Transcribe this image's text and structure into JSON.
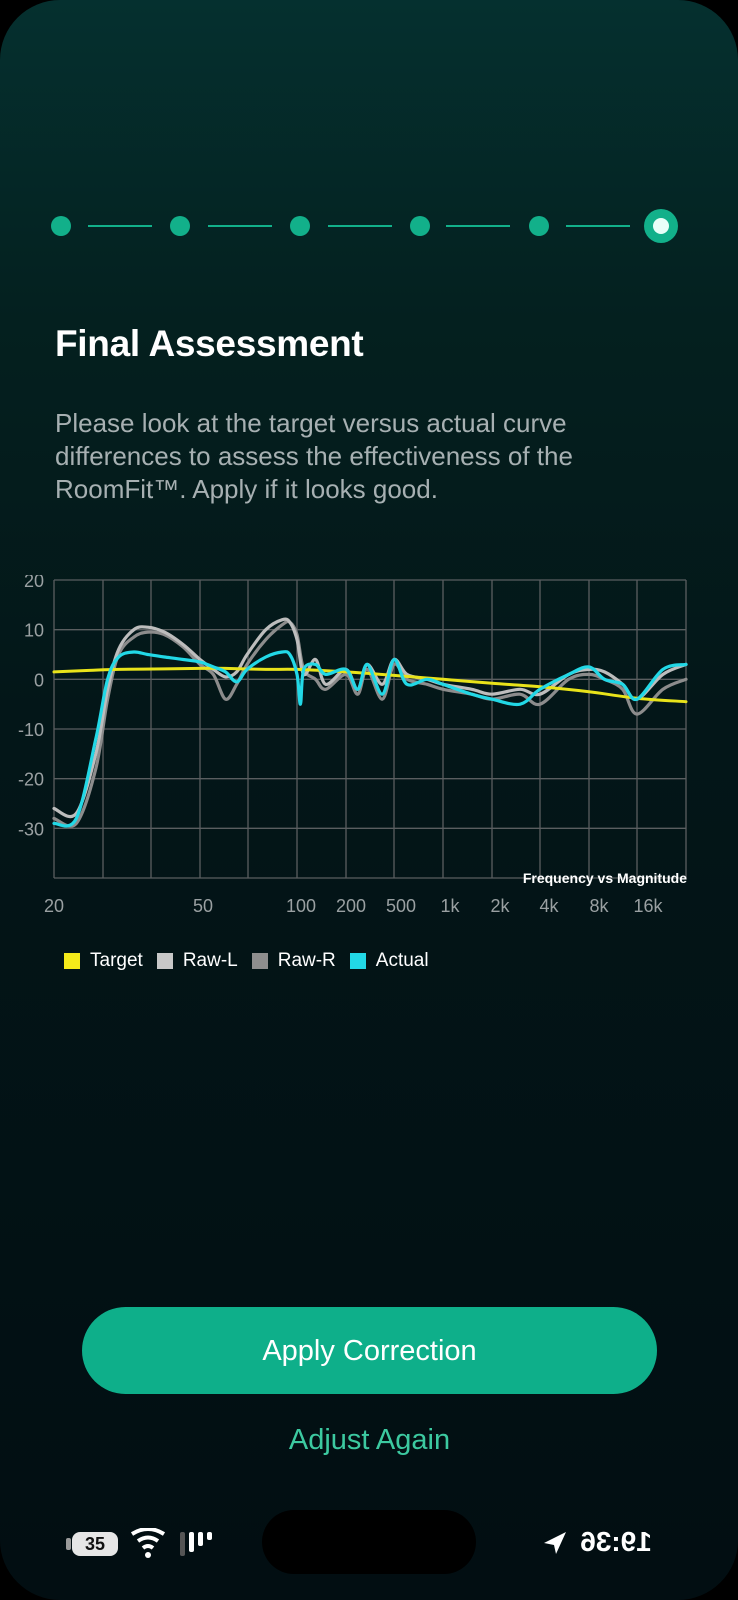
{
  "stepper": {
    "total_steps": 6,
    "current_step": 6
  },
  "title": "Final Assessment",
  "description": "Please look at the target versus actual curve differences to assess the effectiveness of the RoomFit™. Apply if it looks good.",
  "chart_data": {
    "type": "line",
    "title": "Frequency vs Magnitude",
    "xlabel": "",
    "ylabel": "",
    "x_tick_labels": [
      "20",
      "50",
      "100",
      "200",
      "500",
      "1k",
      "2k",
      "4k",
      "8k",
      "16k"
    ],
    "y_ticks": [
      20,
      10,
      0,
      -10,
      -20,
      -30
    ],
    "ylim": [
      -40,
      20
    ],
    "grid": true,
    "legend": "bottom-left",
    "series": [
      {
        "name": "Target",
        "color": "#e8e31a",
        "x": [
          20,
          25,
          30,
          40,
          50,
          60,
          80,
          100,
          200,
          500,
          1000,
          2000,
          4000,
          8000,
          16000,
          20000
        ],
        "y": [
          1.5,
          1.8,
          2.0,
          2.1,
          2.2,
          2.2,
          2.0,
          2.0,
          1.5,
          0.8,
          0.0,
          -0.8,
          -1.5,
          -2.5,
          -3.8,
          -4.5
        ]
      },
      {
        "name": "Raw-L",
        "color": "#bdbdbd",
        "x": [
          20,
          23,
          26,
          28,
          30,
          33,
          36,
          40,
          45,
          50,
          55,
          60,
          65,
          70,
          80,
          90,
          95,
          100,
          110,
          130,
          150,
          200,
          250,
          300,
          400,
          500,
          600,
          800,
          1000,
          1500,
          2000,
          3000,
          4000,
          6000,
          8000,
          10000,
          13000,
          16000,
          18000,
          20000
        ],
        "y": [
          -26,
          -27,
          -15,
          -2,
          6,
          10,
          10.5,
          9.5,
          7,
          4,
          2,
          0.5,
          1.5,
          5,
          10,
          12,
          11.5,
          8,
          1,
          4,
          -1,
          2,
          -2,
          3,
          -1,
          4,
          1,
          0,
          -1,
          -2,
          -3,
          -2,
          -3,
          1,
          2,
          1.5,
          -1,
          -4,
          1,
          3
        ]
      },
      {
        "name": "Raw-R",
        "color": "#8c8c8c",
        "x": [
          20,
          23,
          26,
          28,
          30,
          33,
          36,
          40,
          45,
          50,
          55,
          60,
          65,
          70,
          80,
          90,
          95,
          100,
          110,
          130,
          150,
          200,
          250,
          300,
          400,
          500,
          600,
          800,
          1000,
          1500,
          2000,
          3000,
          4000,
          6000,
          8000,
          10000,
          13000,
          16000,
          18000,
          20000
        ],
        "y": [
          -28,
          -29,
          -18,
          -4,
          5,
          8.5,
          9.5,
          9,
          6.5,
          3,
          1,
          -4,
          -1,
          3,
          8,
          11,
          11.5,
          9,
          2,
          0,
          -2,
          1,
          -3,
          2,
          -4,
          3,
          0,
          -1,
          -2,
          -3,
          -4,
          -3,
          -5,
          0,
          1,
          0,
          -2,
          -7,
          -2,
          0
        ]
      },
      {
        "name": "Actual",
        "color": "#22d8e6",
        "x": [
          20,
          23,
          26,
          28,
          30,
          33,
          36,
          40,
          45,
          50,
          55,
          60,
          65,
          70,
          80,
          90,
          95,
          100,
          105,
          110,
          130,
          150,
          200,
          250,
          300,
          400,
          500,
          600,
          800,
          1000,
          1500,
          2000,
          3000,
          4000,
          6000,
          8000,
          10000,
          13000,
          16000,
          18000,
          20000
        ],
        "y": [
          -29,
          -28,
          -12,
          0,
          4.5,
          5.5,
          5,
          4.5,
          4,
          3.5,
          2.5,
          1.5,
          -0.5,
          2,
          4.5,
          5.5,
          5,
          1,
          -5,
          2,
          3,
          1,
          2,
          -2,
          3,
          -3,
          4,
          -1,
          0,
          -1,
          -3,
          -4,
          -5,
          -2,
          1,
          2.5,
          0,
          -1,
          -4,
          2,
          3
        ]
      }
    ]
  },
  "legend": {
    "items": [
      {
        "label": "Target",
        "color": "#f5ea1a"
      },
      {
        "label": "Raw-L",
        "color": "#c8c8c8"
      },
      {
        "label": "Raw-R",
        "color": "#8e8e8e"
      },
      {
        "label": "Actual",
        "color": "#22d8e6"
      }
    ]
  },
  "buttons": {
    "apply_label": "Apply Correction",
    "adjust_label": "Adjust Again"
  },
  "status_bar": {
    "battery": "35",
    "time": "19:36",
    "icons": [
      "battery-icon",
      "wifi-icon",
      "signal-icon",
      "location-icon"
    ]
  }
}
